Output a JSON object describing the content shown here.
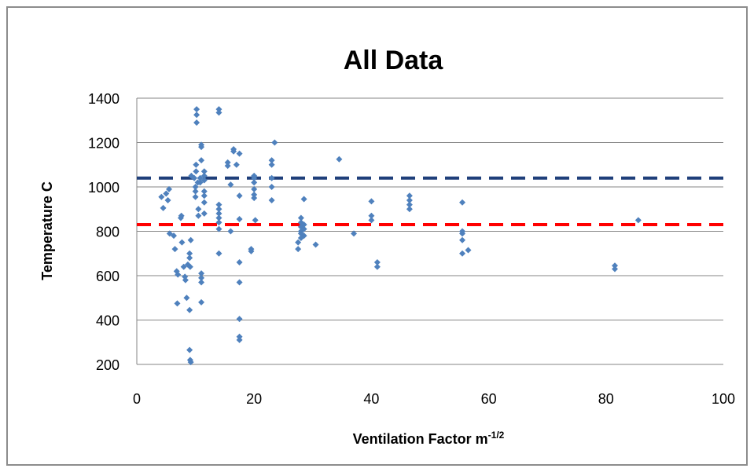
{
  "chart_data": {
    "type": "scatter",
    "title": "All Data",
    "xlabel": "Ventilation Factor m",
    "xlabel_superscript": "-1/2",
    "ylabel": "Temperature C",
    "xlim": [
      0,
      100
    ],
    "ylim": [
      200,
      1400
    ],
    "x_ticks": [
      "0",
      "20",
      "40",
      "60",
      "80",
      "100"
    ],
    "y_ticks": [
      "200",
      "400",
      "600",
      "800",
      "1000",
      "1200",
      "1400"
    ],
    "grid": "horizontal",
    "legend": "none",
    "marker_color": "#4F81BD",
    "reference_lines": [
      {
        "y": 1040,
        "color": "#1F3F7A",
        "style": "dashed"
      },
      {
        "y": 830,
        "color": "#FF0000",
        "style": "dashed"
      }
    ],
    "series": [
      {
        "points": [
          [
            4.2,
            955
          ],
          [
            4.5,
            905
          ],
          [
            5,
            970
          ],
          [
            5.3,
            940
          ],
          [
            5.5,
            990
          ],
          [
            5.6,
            790
          ],
          [
            6.3,
            780
          ],
          [
            6.5,
            720
          ],
          [
            6.8,
            620
          ],
          [
            7,
            605
          ],
          [
            6.9,
            475
          ],
          [
            7.5,
            860
          ],
          [
            7.6,
            870
          ],
          [
            7.7,
            750
          ],
          [
            8,
            640
          ],
          [
            8.2,
            595
          ],
          [
            8.3,
            580
          ],
          [
            8.5,
            500
          ],
          [
            8.7,
            650
          ],
          [
            9,
            700
          ],
          [
            9,
            680
          ],
          [
            9.1,
            640
          ],
          [
            9.2,
            760
          ],
          [
            9,
            445
          ],
          [
            9.3,
            1050
          ],
          [
            9,
            265
          ],
          [
            9.1,
            220
          ],
          [
            9.2,
            210
          ],
          [
            9.8,
            1040
          ],
          [
            10,
            980
          ],
          [
            10,
            1000
          ],
          [
            10,
            955
          ],
          [
            10.1,
            1100
          ],
          [
            10.1,
            1070
          ],
          [
            10.2,
            1350
          ],
          [
            10.2,
            1325
          ],
          [
            10.2,
            1290
          ],
          [
            10.4,
            1020
          ],
          [
            10.5,
            900
          ],
          [
            10.5,
            870
          ],
          [
            10.8,
            1040
          ],
          [
            10.8,
            1020
          ],
          [
            11,
            1190
          ],
          [
            11,
            1180
          ],
          [
            11,
            1120
          ],
          [
            11,
            610
          ],
          [
            11,
            590
          ],
          [
            11,
            570
          ],
          [
            11,
            480
          ],
          [
            11.5,
            1070
          ],
          [
            11.5,
            1050
          ],
          [
            11.5,
            1030
          ],
          [
            11.5,
            980
          ],
          [
            11.5,
            960
          ],
          [
            11.5,
            930
          ],
          [
            11.5,
            880
          ],
          [
            14,
            1350
          ],
          [
            14,
            1335
          ],
          [
            14,
            920
          ],
          [
            14,
            900
          ],
          [
            14,
            880
          ],
          [
            14,
            860
          ],
          [
            14,
            840
          ],
          [
            14,
            810
          ],
          [
            14,
            700
          ],
          [
            15.5,
            1110
          ],
          [
            15.5,
            1095
          ],
          [
            16,
            1010
          ],
          [
            16,
            800
          ],
          [
            16.5,
            1170
          ],
          [
            16.5,
            1160
          ],
          [
            17,
            1100
          ],
          [
            17.5,
            1150
          ],
          [
            17.5,
            960
          ],
          [
            17.5,
            855
          ],
          [
            17.5,
            660
          ],
          [
            17.5,
            570
          ],
          [
            17.5,
            405
          ],
          [
            17.5,
            325
          ],
          [
            17.5,
            310
          ],
          [
            19.5,
            720
          ],
          [
            19.5,
            710
          ],
          [
            20,
            1050
          ],
          [
            20,
            1040
          ],
          [
            20,
            1020
          ],
          [
            20,
            990
          ],
          [
            20,
            965
          ],
          [
            20,
            950
          ],
          [
            20.2,
            850
          ],
          [
            23,
            1120
          ],
          [
            23,
            1100
          ],
          [
            23,
            1040
          ],
          [
            23,
            1000
          ],
          [
            23,
            940
          ],
          [
            23.5,
            1200
          ],
          [
            27.5,
            750
          ],
          [
            27.5,
            720
          ],
          [
            28,
            860
          ],
          [
            28,
            840
          ],
          [
            28,
            820
          ],
          [
            28,
            800
          ],
          [
            28,
            790
          ],
          [
            28,
            770
          ],
          [
            28.5,
            945
          ],
          [
            28.5,
            830
          ],
          [
            28.5,
            810
          ],
          [
            28.5,
            780
          ],
          [
            30.5,
            740
          ],
          [
            34.5,
            1125
          ],
          [
            37,
            790
          ],
          [
            40,
            935
          ],
          [
            40,
            870
          ],
          [
            40,
            850
          ],
          [
            41,
            660
          ],
          [
            41,
            640
          ],
          [
            46.5,
            960
          ],
          [
            46.5,
            940
          ],
          [
            46.5,
            920
          ],
          [
            46.5,
            900
          ],
          [
            55.5,
            930
          ],
          [
            55.5,
            800
          ],
          [
            55.5,
            790
          ],
          [
            55.5,
            760
          ],
          [
            55.5,
            700
          ],
          [
            56.5,
            715
          ],
          [
            81.5,
            645
          ],
          [
            81.5,
            630
          ],
          [
            85.5,
            850
          ]
        ]
      }
    ]
  }
}
